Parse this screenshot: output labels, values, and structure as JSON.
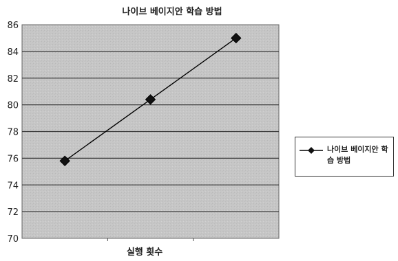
{
  "chart_data": {
    "type": "line",
    "title": "나이브 베이지안 학습 방법",
    "xlabel": "실행 횟수",
    "ylabel": "",
    "ylim": [
      70,
      86
    ],
    "yticks": [
      70,
      72,
      74,
      76,
      78,
      80,
      82,
      84,
      86
    ],
    "grid": true,
    "legend_position": "right",
    "series": [
      {
        "name": "나이브 베이지안 학습 방법",
        "x": [
          1,
          2,
          3
        ],
        "values": [
          75.8,
          80.4,
          85.0
        ],
        "color": "#000000",
        "marker": "diamond"
      }
    ]
  },
  "colors": {
    "plot_background": "#c8c8c8",
    "gridline": "#3a3a3a",
    "line": "#000000"
  }
}
